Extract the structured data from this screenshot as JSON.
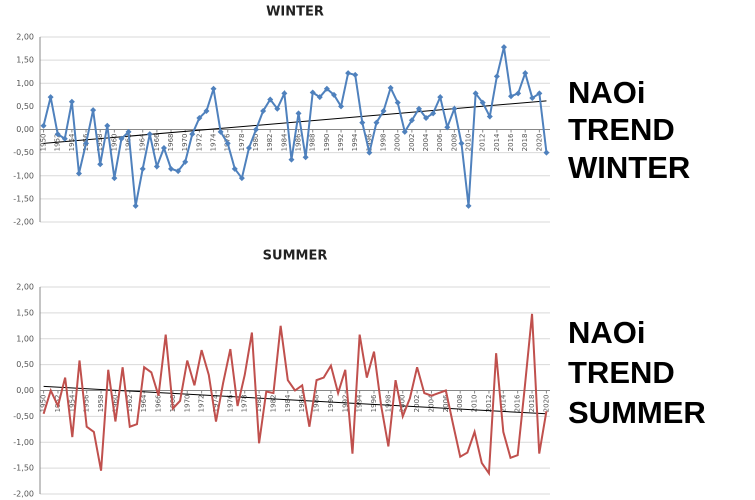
{
  "chart_data": [
    {
      "type": "line",
      "title": "WINTER",
      "side_label": [
        "NAOi",
        "TREND",
        "WINTER"
      ],
      "x": [
        1950,
        1951,
        1952,
        1953,
        1954,
        1955,
        1956,
        1957,
        1958,
        1959,
        1960,
        1961,
        1962,
        1963,
        1964,
        1965,
        1966,
        1967,
        1968,
        1969,
        1970,
        1971,
        1972,
        1973,
        1974,
        1975,
        1976,
        1977,
        1978,
        1979,
        1980,
        1981,
        1982,
        1983,
        1984,
        1985,
        1986,
        1987,
        1988,
        1989,
        1990,
        1991,
        1992,
        1993,
        1994,
        1995,
        1996,
        1997,
        1998,
        1999,
        2000,
        2001,
        2002,
        2003,
        2004,
        2005,
        2006,
        2007,
        2008,
        2009,
        2010,
        2011,
        2012,
        2013,
        2014,
        2015,
        2016,
        2017,
        2018,
        2019,
        2020,
        2021
      ],
      "series": [
        {
          "color": "#4f81bd",
          "markers": true,
          "values": [
            0.08,
            0.7,
            -0.1,
            -0.2,
            0.6,
            -0.95,
            -0.3,
            0.42,
            -0.75,
            0.08,
            -1.05,
            -0.2,
            -0.05,
            -1.65,
            -0.85,
            -0.1,
            -0.8,
            -0.4,
            -0.85,
            -0.9,
            -0.7,
            -0.1,
            0.25,
            0.4,
            0.88,
            -0.05,
            -0.3,
            -0.85,
            -1.05,
            -0.4,
            0.0,
            0.4,
            0.65,
            0.45,
            0.78,
            -0.65,
            0.35,
            -0.6,
            0.8,
            0.7,
            0.88,
            0.75,
            0.5,
            1.22,
            1.18,
            0.15,
            -0.5,
            0.15,
            0.4,
            0.9,
            0.58,
            -0.05,
            0.2,
            0.45,
            0.25,
            0.35,
            0.7,
            0.05,
            0.45,
            -0.3,
            -1.65,
            0.78,
            0.58,
            0.28,
            1.15,
            1.78,
            0.72,
            0.78,
            1.22,
            0.68,
            0.78,
            -0.5
          ]
        }
      ],
      "trend_line": [
        -0.3,
        0.62
      ],
      "xlim": [
        1949.5,
        2021.5
      ],
      "xticks": [
        1950,
        1952,
        1954,
        1956,
        1958,
        1960,
        1962,
        1964,
        1966,
        1968,
        1970,
        1972,
        1974,
        1976,
        1978,
        1980,
        1982,
        1984,
        1986,
        1988,
        1990,
        1992,
        1994,
        1996,
        1998,
        2000,
        2002,
        2004,
        2006,
        2008,
        2010,
        2012,
        2014,
        2016,
        2018,
        2020
      ],
      "ylim": [
        -2,
        2
      ],
      "yticks": [
        {
          "value": -2,
          "label": "-2,00"
        },
        {
          "value": -1.5,
          "label": "-1,50"
        },
        {
          "value": -1,
          "label": "-1,00"
        },
        {
          "value": -0.5,
          "label": "-0,50"
        },
        {
          "value": 0,
          "label": "0,00"
        },
        {
          "value": 0.5,
          "label": "0,50"
        },
        {
          "value": 1,
          "label": "1,00"
        },
        {
          "value": 1.5,
          "label": "1,50"
        },
        {
          "value": 2,
          "label": "2,00"
        }
      ],
      "grid": true
    },
    {
      "type": "line",
      "title": "SUMMER",
      "side_label": [
        "NAOi",
        "TREND",
        "SUMMER"
      ],
      "x": [
        1950,
        1951,
        1952,
        1953,
        1954,
        1955,
        1956,
        1957,
        1958,
        1959,
        1960,
        1961,
        1962,
        1963,
        1964,
        1965,
        1966,
        1967,
        1968,
        1969,
        1970,
        1971,
        1972,
        1973,
        1974,
        1975,
        1976,
        1977,
        1978,
        1979,
        1980,
        1981,
        1982,
        1983,
        1984,
        1985,
        1986,
        1987,
        1988,
        1989,
        1990,
        1991,
        1992,
        1993,
        1994,
        1995,
        1996,
        1997,
        1998,
        1999,
        2000,
        2001,
        2002,
        2003,
        2004,
        2005,
        2006,
        2007,
        2008,
        2009,
        2010,
        2011,
        2012,
        2013,
        2014,
        2015,
        2016,
        2017,
        2018,
        2019,
        2020
      ],
      "series": [
        {
          "color": "#c0504d",
          "markers": false,
          "values": [
            -0.45,
            0.0,
            -0.3,
            0.25,
            -0.9,
            0.58,
            -0.7,
            -0.8,
            -1.55,
            0.4,
            -0.6,
            0.45,
            -0.7,
            -0.65,
            0.45,
            0.35,
            -0.1,
            1.08,
            -0.35,
            -0.2,
            0.58,
            0.1,
            0.78,
            0.3,
            -0.6,
            0.15,
            0.8,
            -0.3,
            0.3,
            1.12,
            -1.02,
            -0.02,
            -0.05,
            1.25,
            0.2,
            0.0,
            0.1,
            -0.7,
            0.2,
            0.25,
            0.48,
            -0.05,
            0.4,
            -1.22,
            1.08,
            0.25,
            0.75,
            -0.3,
            -1.08,
            0.2,
            -0.5,
            -0.15,
            0.45,
            -0.05,
            -0.1,
            -0.05,
            0.0,
            -0.65,
            -1.28,
            -1.2,
            -0.8,
            -1.4,
            -1.6,
            0.72,
            -0.8,
            -1.3,
            -1.25,
            0.08,
            1.48,
            -1.22,
            -0.4
          ]
        }
      ],
      "trend_line": [
        0.08,
        -0.45
      ],
      "xlim": [
        1949.5,
        2020.5
      ],
      "xticks": [
        1950,
        1952,
        1954,
        1956,
        1958,
        1960,
        1962,
        1964,
        1966,
        1968,
        1970,
        1972,
        1974,
        1976,
        1978,
        1980,
        1982,
        1984,
        1986,
        1988,
        1990,
        1992,
        1994,
        1996,
        1998,
        2000,
        2002,
        2004,
        2006,
        2008,
        2010,
        2012,
        2014,
        2016,
        2018,
        2020
      ],
      "ylim": [
        -2,
        2
      ],
      "yticks": [
        {
          "value": -2,
          "label": "-2,00"
        },
        {
          "value": -1.5,
          "label": "-1,50"
        },
        {
          "value": -1,
          "label": "-1,00"
        },
        {
          "value": -0.5,
          "label": "-0,50"
        },
        {
          "value": 0,
          "label": "0,00"
        },
        {
          "value": 0.5,
          "label": "0,50"
        },
        {
          "value": 1,
          "label": "1,00"
        },
        {
          "value": 1.5,
          "label": "1,50"
        },
        {
          "value": 2,
          "label": "2,00"
        }
      ],
      "grid": true
    }
  ]
}
